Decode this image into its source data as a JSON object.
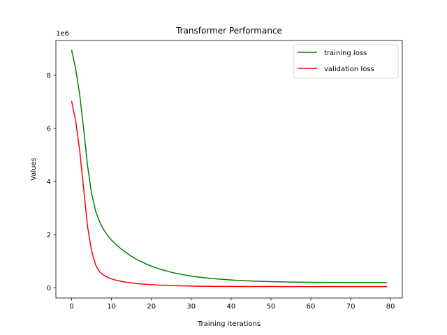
{
  "chart_data": {
    "type": "line",
    "title": "Transformer Performance",
    "xlabel": "Training iterations",
    "ylabel": "Values",
    "y_offset_label": "1e6",
    "xlim": [
      -3.95,
      82.95
    ],
    "ylim": [
      -380000,
      9310000
    ],
    "x_ticks": [
      0,
      10,
      20,
      30,
      40,
      50,
      60,
      70,
      80
    ],
    "x_tick_labels": [
      "0",
      "10",
      "20",
      "30",
      "40",
      "50",
      "60",
      "70",
      "80"
    ],
    "y_ticks": [
      0,
      2000000,
      4000000,
      6000000,
      8000000
    ],
    "y_tick_labels": [
      "0",
      "2",
      "4",
      "6",
      "8"
    ],
    "legend_position": "upper right",
    "grid": false,
    "series": [
      {
        "name": "training loss",
        "color": "#008000",
        "x": [
          0,
          1,
          2,
          3,
          4,
          5,
          6,
          7,
          8,
          9,
          10,
          11,
          12,
          13,
          14,
          15,
          16,
          17,
          18,
          19,
          20,
          21,
          22,
          23,
          24,
          25,
          26,
          27,
          28,
          29,
          30,
          31,
          32,
          33,
          34,
          35,
          36,
          37,
          38,
          39,
          40,
          41,
          42,
          43,
          44,
          45,
          46,
          47,
          48,
          49,
          50,
          51,
          52,
          53,
          54,
          55,
          56,
          57,
          58,
          59,
          60,
          61,
          62,
          63,
          64,
          65,
          66,
          67,
          68,
          69,
          70,
          71,
          72,
          73,
          74,
          75,
          76,
          77,
          78,
          79
        ],
        "values": [
          8940000,
          8250000,
          7300000,
          6000000,
          4600000,
          3550000,
          2900000,
          2500000,
          2200000,
          1980000,
          1800000,
          1650000,
          1520000,
          1400000,
          1290000,
          1190000,
          1100000,
          1020000,
          950000,
          880000,
          820000,
          765000,
          715000,
          670000,
          630000,
          590000,
          555000,
          525000,
          495000,
          470000,
          445000,
          425000,
          405000,
          388000,
          372000,
          357000,
          343000,
          331000,
          319000,
          308000,
          298000,
          289000,
          281000,
          274000,
          267000,
          261000,
          255000,
          250000,
          245000,
          241000,
          237000,
          233000,
          230000,
          227000,
          224000,
          221000,
          219000,
          217000,
          215000,
          213000,
          211000,
          209000,
          208000,
          207000,
          206000,
          205000,
          204000,
          203000,
          203000,
          202000,
          202000,
          201000,
          201000,
          201000,
          200000,
          200000,
          200000,
          200000,
          200000,
          200000
        ]
      },
      {
        "name": "validation loss",
        "color": "#ff0000",
        "x": [
          0,
          1,
          2,
          3,
          4,
          5,
          6,
          7,
          8,
          9,
          10,
          11,
          12,
          13,
          14,
          15,
          16,
          17,
          18,
          19,
          20,
          21,
          22,
          23,
          24,
          25,
          26,
          27,
          28,
          29,
          30,
          31,
          32,
          33,
          34,
          35,
          36,
          37,
          38,
          39,
          40,
          41,
          42,
          43,
          44,
          45,
          46,
          47,
          48,
          49,
          50,
          51,
          52,
          53,
          54,
          55,
          56,
          57,
          58,
          59,
          60,
          61,
          62,
          63,
          64,
          65,
          66,
          67,
          68,
          69,
          70,
          71,
          72,
          73,
          74,
          75,
          76,
          77,
          78,
          79
        ],
        "values": [
          7020000,
          6300000,
          5200000,
          3750000,
          2300000,
          1400000,
          870000,
          610000,
          480000,
          400000,
          340000,
          295000,
          260000,
          232000,
          208000,
          188000,
          171000,
          156000,
          144000,
          133000,
          123000,
          114000,
          106000,
          99000,
          93000,
          88000,
          83000,
          79000,
          75000,
          72000,
          69000,
          66000,
          64000,
          62000,
          60000,
          59000,
          58000,
          57000,
          56000,
          55500,
          55000,
          54500,
          54000,
          53500,
          53000,
          52800,
          52600,
          52400,
          52200,
          52000,
          51800,
          51600,
          51400,
          51200,
          51000,
          50800,
          50600,
          50400,
          50200,
          50000,
          50000,
          50000,
          50000,
          50000,
          50000,
          50000,
          50000,
          50000,
          50000,
          50000,
          50000,
          50000,
          50000,
          50000,
          50000,
          50000,
          50000,
          50000,
          50000,
          50000
        ]
      }
    ]
  }
}
